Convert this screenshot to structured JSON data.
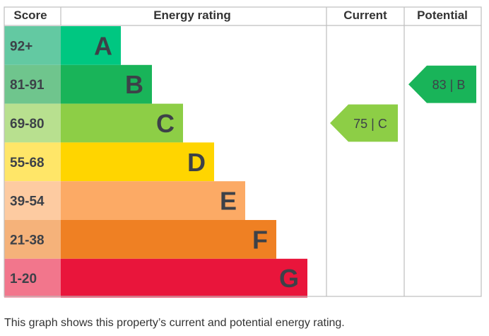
{
  "headers": {
    "score": "Score",
    "rating": "Energy rating",
    "current": "Current",
    "potential": "Potential"
  },
  "chart_data": {
    "type": "bar",
    "bands": [
      {
        "score": "92+",
        "letter": "A",
        "color": "#00c781",
        "score_bg": "#63c9a2"
      },
      {
        "score": "81-91",
        "letter": "B",
        "color": "#19b459",
        "score_bg": "#6fc58d"
      },
      {
        "score": "69-80",
        "letter": "C",
        "color": "#8dce46",
        "score_bg": "#b8e08f"
      },
      {
        "score": "55-68",
        "letter": "D",
        "color": "#ffd500",
        "score_bg": "#ffe668"
      },
      {
        "score": "39-54",
        "letter": "E",
        "color": "#fcaa65",
        "score_bg": "#fdcba1"
      },
      {
        "score": "21-38",
        "letter": "F",
        "color": "#ef8023",
        "score_bg": "#f5b27a"
      },
      {
        "score": "1-20",
        "letter": "G",
        "color": "#e9153b",
        "score_bg": "#f2768c"
      }
    ],
    "current": {
      "value": 75,
      "letter": "C",
      "label": "75 | C",
      "color": "#8dce46"
    },
    "potential": {
      "value": 83,
      "letter": "B",
      "label": "83 | B",
      "color": "#19b459"
    }
  },
  "colors": {
    "text_dark": "#3d4148",
    "grid": "#bfbfbf",
    "header_text": "#333333"
  },
  "caption": "This graph shows this property’s current and potential energy rating."
}
